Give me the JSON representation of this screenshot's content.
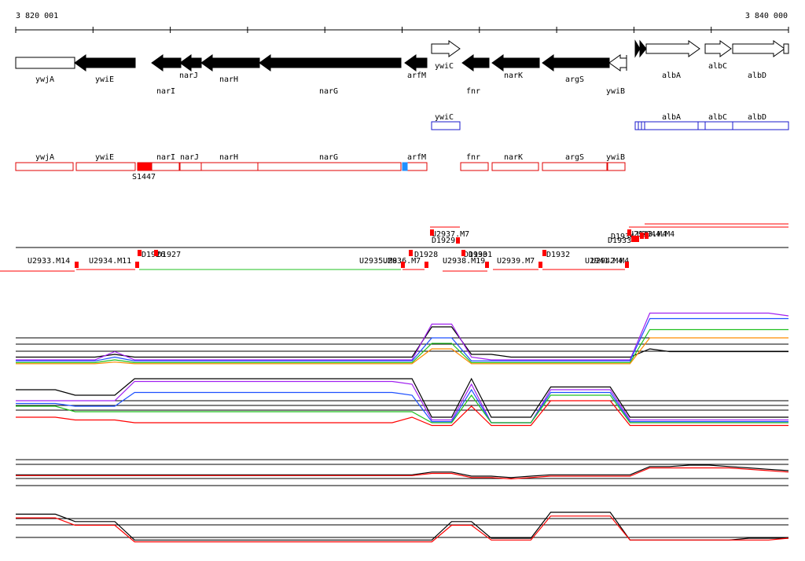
{
  "ruler": {
    "start": "3 820 001",
    "end": "3 840 000"
  },
  "genes": [
    "ywjA",
    "ywiE",
    "narI",
    "narJ",
    "narH",
    "narG",
    "arfM",
    "ywiC",
    "fnr",
    "narK",
    "argS",
    "ywiB",
    "albA",
    "albC",
    "albD"
  ],
  "operons": [
    "ywiC",
    "albA",
    "albC",
    "albD"
  ],
  "transcripts": [
    "ywjA",
    "ywiE",
    "S1447",
    "narI",
    "narJ",
    "narH",
    "narG",
    "arfM",
    "fnr",
    "narK",
    "argS",
    "ywiB"
  ],
  "features": [
    "U2933.M14",
    "U2934.M11",
    "D1926",
    "D1927",
    "U2935.M8",
    "U2936.M7",
    "D1928",
    "U2937.M7",
    "D1929",
    "U2938.M19",
    "D1930",
    "D1931",
    "U2939.M7",
    "D1932",
    "U2941.M4",
    "U2942.M4",
    "D1933",
    "D1934",
    "U2943.M4",
    "U2944.M4"
  ],
  "expression": [
    {
      "series": [
        {
          "color": "#000000",
          "values": [
            1.5,
            1.5,
            1.5,
            1.5,
            1.5,
            2,
            1.5,
            1.5,
            1.5,
            1.5,
            1.5,
            1.5,
            1.5,
            1.5,
            1.5,
            1.5,
            1.5,
            1.5,
            1.5,
            1.5,
            1.5,
            7,
            7,
            2,
            2,
            1.5,
            1.5,
            1.5,
            1.5,
            1.5,
            1.5,
            1.5,
            3,
            2.5,
            2.5,
            2.5,
            2.5,
            2.5,
            2.5,
            2.5
          ]
        },
        {
          "color": "#a020f0",
          "values": [
            1,
            1,
            1,
            1,
            1,
            2.5,
            1,
            1,
            1,
            1,
            1,
            1,
            1,
            1,
            1,
            1,
            1,
            1,
            1,
            1,
            1,
            7.5,
            7.5,
            1.5,
            1,
            1,
            1,
            1,
            1,
            1,
            1,
            1,
            9.5,
            9.5,
            9.5,
            9.5,
            9.5,
            9.5,
            9.5,
            9
          ]
        },
        {
          "color": "#1e50ff",
          "values": [
            0.8,
            0.8,
            0.8,
            0.8,
            0.8,
            1.5,
            0.8,
            0.8,
            0.8,
            0.8,
            0.8,
            0.8,
            0.8,
            0.8,
            0.8,
            0.8,
            0.8,
            0.8,
            0.8,
            0.8,
            0.8,
            5,
            5,
            0.8,
            0.8,
            0.8,
            0.8,
            0.8,
            0.8,
            0.8,
            0.8,
            0.8,
            8.5,
            8.5,
            8.5,
            8.5,
            8.5,
            8.5,
            8.5,
            8.5
          ]
        },
        {
          "color": "#20c020",
          "values": [
            0.5,
            0.5,
            0.5,
            0.5,
            0.5,
            1,
            0.5,
            0.5,
            0.5,
            0.5,
            0.5,
            0.5,
            0.5,
            0.5,
            0.5,
            0.5,
            0.5,
            0.5,
            0.5,
            0.5,
            0.5,
            4,
            4,
            0.5,
            0.5,
            0.5,
            0.5,
            0.5,
            0.5,
            0.5,
            0.5,
            0.5,
            6.5,
            6.5,
            6.5,
            6.5,
            6.5,
            6.5,
            6.5,
            6.5
          ]
        },
        {
          "color": "#ff8c00",
          "values": [
            0.3,
            0.3,
            0.3,
            0.3,
            0.3,
            0.6,
            0.3,
            0.3,
            0.3,
            0.3,
            0.3,
            0.3,
            0.3,
            0.3,
            0.3,
            0.3,
            0.3,
            0.3,
            0.3,
            0.3,
            0.3,
            3,
            3,
            0.3,
            0.3,
            0.3,
            0.3,
            0.3,
            0.3,
            0.3,
            0.3,
            0.3,
            5,
            5,
            5,
            5,
            5,
            5,
            5,
            5
          ]
        }
      ]
    },
    {
      "series": [
        {
          "color": "#000000",
          "values": [
            7,
            7,
            7,
            6,
            6,
            6,
            9,
            9,
            9,
            9,
            9,
            9,
            9,
            9,
            9,
            9,
            9,
            9,
            9,
            9,
            9,
            2,
            2,
            9,
            2,
            2,
            2,
            7.5,
            7.5,
            7.5,
            7.5,
            2,
            2,
            2,
            2,
            2,
            2,
            2,
            2,
            2
          ]
        },
        {
          "color": "#a020f0",
          "values": [
            5,
            5,
            5,
            5,
            5,
            5,
            8.5,
            8.5,
            8.5,
            8.5,
            8.5,
            8.5,
            8.5,
            8.5,
            8.5,
            8.5,
            8.5,
            8.5,
            8.5,
            8.5,
            8,
            1.5,
            1.5,
            8,
            1,
            1,
            1,
            7,
            7,
            7,
            7,
            1.5,
            1.5,
            1.5,
            1.5,
            1.5,
            1.5,
            1.5,
            1.5,
            1.5
          ]
        },
        {
          "color": "#1e50ff",
          "values": [
            4.5,
            4.5,
            4.5,
            4,
            4,
            4,
            6.5,
            6.5,
            6.5,
            6.5,
            6.5,
            6.5,
            6.5,
            6.5,
            6.5,
            6.5,
            6.5,
            6.5,
            6.5,
            6.5,
            6,
            1.2,
            1.2,
            7,
            1,
            1,
            1,
            6.5,
            6.5,
            6.5,
            6.5,
            1.2,
            1.2,
            1.2,
            1.2,
            1.2,
            1.2,
            1.2,
            1.2,
            1.2
          ]
        },
        {
          "color": "#20c020",
          "values": [
            4,
            4,
            4,
            3,
            3,
            3,
            3,
            3,
            3,
            3,
            3,
            3,
            3,
            3,
            3,
            3,
            3,
            3,
            3,
            3,
            3,
            1,
            1,
            6,
            1,
            1,
            1,
            6,
            6,
            6,
            6,
            1,
            1,
            1,
            1,
            1,
            1,
            1,
            1,
            1
          ]
        },
        {
          "color": "#ff0000",
          "values": [
            2,
            2,
            2,
            1.5,
            1.5,
            1.5,
            1,
            1,
            1,
            1,
            1,
            1,
            1,
            1,
            1,
            1,
            1,
            1,
            1,
            1,
            2,
            0.5,
            0.5,
            4,
            0.5,
            0.5,
            0.5,
            5,
            5,
            5,
            5,
            0.5,
            0.5,
            0.5,
            0.5,
            0.5,
            0.5,
            0.5,
            0.5,
            0.5
          ]
        }
      ]
    },
    {
      "series": [
        {
          "color": "#000000",
          "values": [
            4.5,
            4.5,
            4.5,
            4.5,
            4.5,
            4.5,
            4.5,
            4.5,
            4.5,
            4.5,
            4.5,
            4.5,
            4.5,
            4.5,
            4.5,
            4.5,
            4.5,
            4.5,
            4.5,
            4.5,
            4.5,
            5.5,
            5.5,
            4,
            4,
            3.5,
            4,
            4.5,
            4.5,
            4.5,
            4.5,
            4.5,
            7.5,
            7.5,
            8,
            8,
            7.5,
            7,
            6.5,
            6
          ]
        },
        {
          "color": "#ff0000",
          "values": [
            4.2,
            4.2,
            4.2,
            4.2,
            4.2,
            4.2,
            4.2,
            4.2,
            4.2,
            4.2,
            4.2,
            4.2,
            4.2,
            4.2,
            4.2,
            4.2,
            4.2,
            4.2,
            4.2,
            4.2,
            4.2,
            5,
            5,
            3.5,
            3.5,
            3,
            3.5,
            4,
            4,
            4,
            4,
            4,
            7,
            7,
            7,
            7,
            7,
            6.5,
            6,
            5.5
          ]
        }
      ]
    },
    {
      "series": [
        {
          "color": "#000000",
          "values": [
            8,
            8,
            8,
            6,
            6,
            6,
            1,
            1,
            1,
            1,
            1,
            1,
            1,
            1,
            1,
            1,
            1,
            1,
            1,
            1,
            1,
            1,
            6,
            6,
            1.5,
            1.5,
            1.5,
            8.5,
            8.5,
            8.5,
            8.5,
            1,
            1,
            1,
            1,
            1,
            1,
            1.5,
            1.5,
            1.5
          ]
        },
        {
          "color": "#ff0000",
          "values": [
            7,
            7,
            7,
            5,
            5,
            5,
            0.5,
            0.5,
            0.5,
            0.5,
            0.5,
            0.5,
            0.5,
            0.5,
            0.5,
            0.5,
            0.5,
            0.5,
            0.5,
            0.5,
            0.5,
            0.5,
            5,
            5,
            1,
            1,
            1,
            7.5,
            7.5,
            7.5,
            7.5,
            1,
            1,
            1,
            1,
            1,
            1,
            1,
            1,
            1.5
          ]
        }
      ]
    }
  ]
}
